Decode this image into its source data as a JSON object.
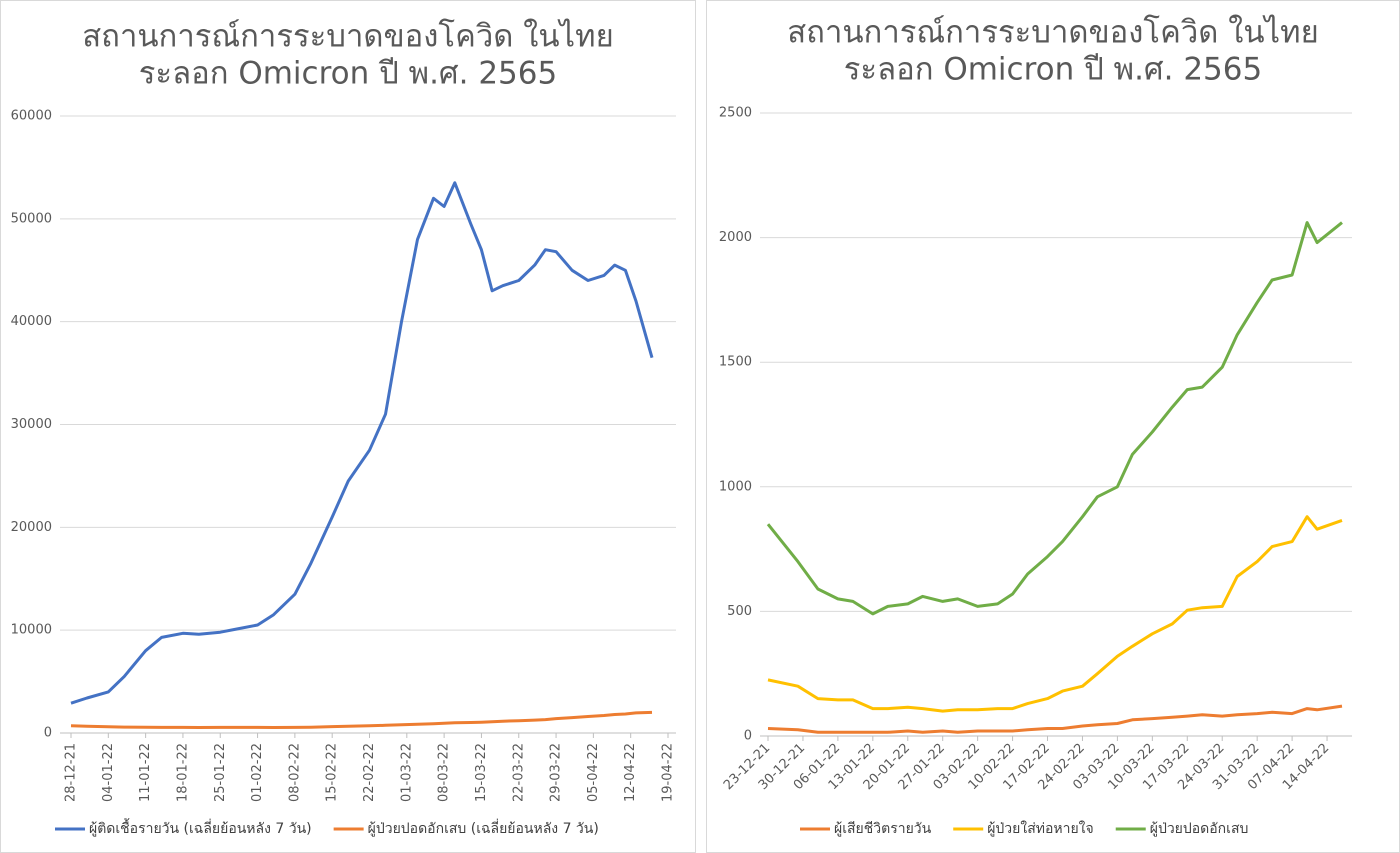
{
  "chart_data": [
    {
      "type": "line",
      "title": [
        "สถานการณ์การระบาดของโควิด ในไทย",
        "ระลอก Omicron ปี พ.ศ. 2565"
      ],
      "x": [
        "28-12-21",
        "31-12-21",
        "04-01-22",
        "07-01-22",
        "11-01-22",
        "14-01-22",
        "18-01-22",
        "21-01-22",
        "25-01-22",
        "28-01-22",
        "01-02-22",
        "04-02-22",
        "08-02-22",
        "11-02-22",
        "15-02-22",
        "18-02-22",
        "22-02-22",
        "25-02-22",
        "28-02-22",
        "03-03-22",
        "06-03-22",
        "08-03-22",
        "10-03-22",
        "13-03-22",
        "15-03-22",
        "17-03-22",
        "19-03-22",
        "22-03-22",
        "25-03-22",
        "27-03-22",
        "29-03-22",
        "01-04-22",
        "04-04-22",
        "07-04-22",
        "09-04-22",
        "11-04-22",
        "13-04-22",
        "16-04-22"
      ],
      "series": [
        {
          "name": "ผู้ติดเชื้อรายวัน (เฉลี่ยย้อนหลัง 7 วัน)",
          "color": "#4472c4",
          "values": [
            2900,
            3400,
            4000,
            5500,
            8000,
            9300,
            9700,
            9600,
            9800,
            10100,
            10500,
            11500,
            13500,
            16500,
            21000,
            24500,
            27500,
            31000,
            40000,
            48000,
            52000,
            51200,
            53500,
            49500,
            47000,
            43000,
            43500,
            44000,
            45500,
            47000,
            46800,
            45000,
            44000,
            44500,
            45500,
            45000,
            42000,
            36500
          ]
        },
        {
          "name": "ผู้ป่วยปอดอักเสบ (เฉลี่ยย้อนหลัง 7 วัน)",
          "color": "#ed7d31",
          "values": [
            700,
            650,
            600,
            570,
            550,
            540,
            540,
            530,
            540,
            540,
            540,
            530,
            540,
            560,
            620,
            650,
            700,
            750,
            800,
            850,
            900,
            950,
            1000,
            1020,
            1050,
            1100,
            1150,
            1200,
            1250,
            1300,
            1400,
            1500,
            1600,
            1700,
            1800,
            1850,
            1950,
            2000
          ]
        }
      ],
      "xlim": [
        "28-12-21",
        "19-04-22"
      ],
      "xticks": [
        "28-12-21",
        "04-01-22",
        "11-01-22",
        "18-01-22",
        "25-01-22",
        "01-02-22",
        "08-02-22",
        "15-02-22",
        "22-02-22",
        "01-03-22",
        "08-03-22",
        "15-03-22",
        "22-03-22",
        "29-03-22",
        "05-04-22",
        "12-04-22",
        "19-04-22"
      ],
      "ylim": [
        0,
        60000
      ],
      "yticks": [
        0,
        10000,
        20000,
        30000,
        40000,
        50000,
        60000
      ],
      "grid": true,
      "legend": "bottom"
    },
    {
      "type": "line",
      "title": [
        "สถานการณ์การระบาดของโควิด ในไทย",
        "ระลอก Omicron ปี พ.ศ. 2565"
      ],
      "x": [
        "23-12-21",
        "29-12-21",
        "02-01-22",
        "06-01-22",
        "09-01-22",
        "13-01-22",
        "16-01-22",
        "20-01-22",
        "23-01-22",
        "27-01-22",
        "30-01-22",
        "03-02-22",
        "07-02-22",
        "10-02-22",
        "13-02-22",
        "17-02-22",
        "20-02-22",
        "24-02-22",
        "27-02-22",
        "03-03-22",
        "06-03-22",
        "10-03-22",
        "14-03-22",
        "17-03-22",
        "20-03-22",
        "24-03-22",
        "27-03-22",
        "31-03-22",
        "03-04-22",
        "07-04-22",
        "10-04-22",
        "12-04-22",
        "17-04-22"
      ],
      "series": [
        {
          "name": "ผู้เสียชีวิตรายวัน",
          "color": "#ed7d31",
          "values": [
            30,
            25,
            15,
            15,
            15,
            15,
            15,
            20,
            15,
            20,
            15,
            20,
            20,
            20,
            25,
            30,
            30,
            40,
            45,
            50,
            65,
            70,
            75,
            80,
            85,
            80,
            85,
            90,
            95,
            90,
            110,
            105,
            120
          ]
        },
        {
          "name": "ผู้ป่วยใส่ท่อหายใจ",
          "color": "#ffc000",
          "values": [
            225,
            200,
            150,
            145,
            145,
            110,
            110,
            115,
            110,
            100,
            105,
            105,
            110,
            110,
            130,
            150,
            180,
            200,
            250,
            320,
            360,
            410,
            450,
            505,
            515,
            520,
            640,
            700,
            760,
            780,
            880,
            830,
            865
          ]
        },
        {
          "name": "ผู้ป่วยปอดอักเสบ",
          "color": "#70ad47",
          "values": [
            850,
            700,
            590,
            550,
            540,
            490,
            520,
            530,
            560,
            540,
            550,
            520,
            530,
            570,
            650,
            720,
            780,
            880,
            960,
            1000,
            1130,
            1220,
            1320,
            1390,
            1400,
            1480,
            1610,
            1740,
            1830,
            1850,
            2060,
            1980,
            2060
          ]
        }
      ],
      "xlim": [
        "23-12-21",
        "19-04-22"
      ],
      "xticks": [
        "23-12-21",
        "30-12-21",
        "06-01-22",
        "13-01-22",
        "20-01-22",
        "27-01-22",
        "03-02-22",
        "10-02-22",
        "17-02-22",
        "24-02-22",
        "03-03-22",
        "10-03-22",
        "17-03-22",
        "24-03-22",
        "31-03-22",
        "07-04-22",
        "14-04-22"
      ],
      "ylim": [
        0,
        2500
      ],
      "yticks": [
        0,
        500,
        1000,
        1500,
        2000,
        2500
      ],
      "grid": true,
      "legend": "bottom"
    }
  ]
}
